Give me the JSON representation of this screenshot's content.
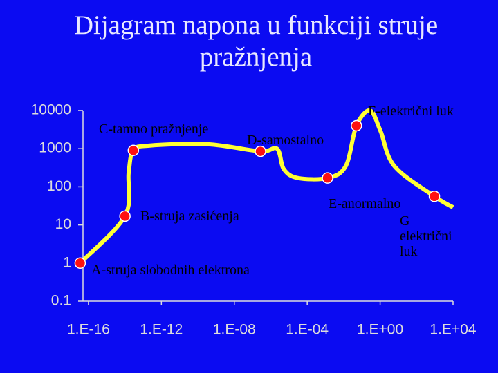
{
  "chart_data": {
    "type": "line",
    "title": "Dijagram napona u funkciji struje pražnjenja",
    "xlog": true,
    "ylog": true,
    "xlim": [
      5e-17,
      10000
    ],
    "ylim": [
      0.1,
      10000
    ],
    "xticks": [
      {
        "value": 1e-16,
        "label": "1.E-16"
      },
      {
        "value": 1e-12,
        "label": "1.E-12"
      },
      {
        "value": 1e-08,
        "label": "1.E-08"
      },
      {
        "value": 0.0001,
        "label": "1.E-04"
      },
      {
        "value": 1,
        "label": "1.E+00"
      },
      {
        "value": 10000,
        "label": "1.E+04"
      }
    ],
    "yticks": [
      0.1,
      1,
      10,
      100,
      1000,
      10000
    ],
    "curve": {
      "color": "#ffff33",
      "x": [
        3.5e-17,
        1e-14,
        1.6e-14,
        2.9e-14,
        2.1e-13,
        3.5e-10,
        2.7e-07,
        2.2e-06,
        5.2e-06,
        3e-05,
        0.0013,
        0.013,
        0.05,
        0.28,
        1.05,
        6,
        950,
        10000
      ],
      "y": [
        1,
        17,
        230,
        900,
        1200,
        1300,
        850,
        1000,
        290,
        170,
        170,
        350,
        4000,
        10000,
        2900,
        350,
        56,
        29
      ]
    },
    "points": {
      "color": "#ff1010",
      "x": [
        3.5e-17,
        1e-14,
        2.9e-14,
        2.7e-07,
        0.0013,
        0.05,
        950
      ],
      "y": [
        1,
        17,
        900,
        850,
        170,
        4000,
        56
      ],
      "labels": [
        "A-struja slobodnih elektrona",
        "B-struja zasićenja",
        "C-tamno pražnjenje",
        "D-samostalno",
        "E-anormalno",
        "F-električni luk",
        "G električni luk"
      ]
    }
  }
}
